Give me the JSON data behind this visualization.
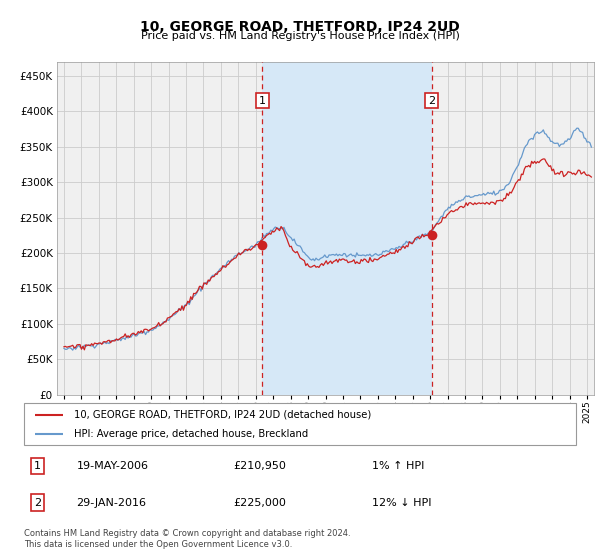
{
  "title": "10, GEORGE ROAD, THETFORD, IP24 2UD",
  "subtitle": "Price paid vs. HM Land Registry's House Price Index (HPI)",
  "ytick_vals": [
    0,
    50000,
    100000,
    150000,
    200000,
    250000,
    300000,
    350000,
    400000,
    450000
  ],
  "ylim": [
    0,
    470000
  ],
  "xlim_start": 1994.6,
  "xlim_end": 2025.4,
  "background_color": "#f0f0f0",
  "shade_color": "#d6e8f7",
  "grid_color": "#cccccc",
  "sale1_x": 2006.38,
  "sale1_y": 210950,
  "sale2_x": 2016.08,
  "sale2_y": 225000,
  "sale1_label": "1",
  "sale2_label": "2",
  "sale1_date": "19-MAY-2006",
  "sale1_price": "£210,950",
  "sale1_hpi": "1% ↑ HPI",
  "sale2_date": "29-JAN-2016",
  "sale2_price": "£225,000",
  "sale2_hpi": "12% ↓ HPI",
  "legend_line1": "10, GEORGE ROAD, THETFORD, IP24 2UD (detached house)",
  "legend_line2": "HPI: Average price, detached house, Breckland",
  "footer": "Contains HM Land Registry data © Crown copyright and database right 2024.\nThis data is licensed under the Open Government Licence v3.0.",
  "line_color_red": "#cc2222",
  "line_color_blue": "#6699cc",
  "dashed_line_color": "#cc2222",
  "label_box_color": "#cc2222"
}
